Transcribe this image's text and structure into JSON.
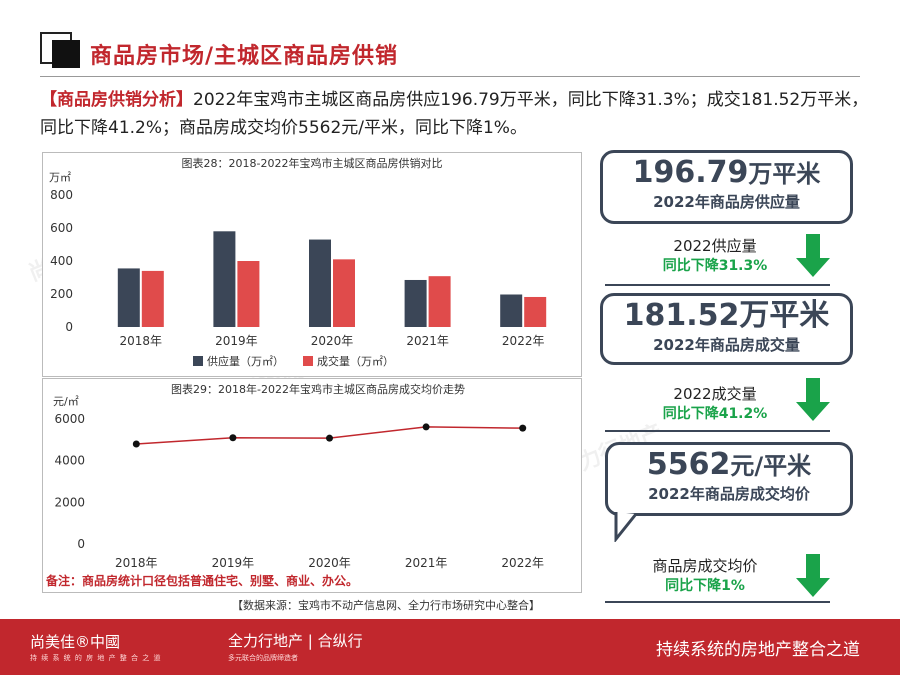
{
  "header": {
    "title": "商品房市场/主城区商品房供销"
  },
  "summary": {
    "tag": "【商品房供销分析】",
    "text": "2022年宝鸡市主城区商品房供应196.79万平米，同比下降31.3%；成交181.52万平米，同比下降41.2%；商品房成交均价5562元/平米，同比下降1%。"
  },
  "chart_data": [
    {
      "type": "bar",
      "title": "图表28：2018-2022年宝鸡市主城区商品房供销对比",
      "ylabel": "万㎡",
      "categories": [
        "2018年",
        "2019年",
        "2020年",
        "2021年",
        "2022年"
      ],
      "ylim": [
        0,
        800
      ],
      "yticks": [
        0,
        200,
        400,
        600,
        800
      ],
      "series": [
        {
          "name": "供应量（万㎡）",
          "color": "#3b4657",
          "values": [
            355,
            580,
            530,
            285,
            197
          ]
        },
        {
          "name": "成交量（万㎡）",
          "color": "#e04b4b",
          "values": [
            340,
            400,
            410,
            308,
            182
          ]
        }
      ],
      "legend": "bottom",
      "grid": false
    },
    {
      "type": "line",
      "title": "图表29：2018年-2022年宝鸡市主城区商品房成交均价走势",
      "ylabel": "元/㎡",
      "categories": [
        "2018年",
        "2019年",
        "2020年",
        "2021年",
        "2022年"
      ],
      "ylim": [
        0,
        6000
      ],
      "yticks": [
        0,
        2000,
        4000,
        6000
      ],
      "series": [
        {
          "color": "#c1272d",
          "values": [
            4800,
            5100,
            5080,
            5620,
            5562
          ]
        }
      ],
      "grid": false
    }
  ],
  "note": "备注：商品房统计口径包括普通住宅、别墅、商业、办公。",
  "source": "【数据来源：宝鸡市不动产信息网、全力行市场研究中心整合】",
  "cards": [
    {
      "value": "196.79",
      "unit": "万平米",
      "label": "2022年商品房供应量"
    },
    {
      "value": "181.52万平米",
      "unit": "",
      "label": "2022年商品房成交量"
    },
    {
      "value": "5562",
      "unit": "元/平米",
      "label": "2022年商品房成交均价"
    }
  ],
  "yoy": [
    {
      "title": "2022供应量",
      "change": "同比下降31.3%"
    },
    {
      "title": "2022成交量",
      "change": "同比下降41.2%"
    },
    {
      "title": "商品房成交均价",
      "change": "同比下降1%"
    }
  ],
  "colors": {
    "accent": "#c1272d",
    "dark": "#3b4657",
    "green": "#1aa34a"
  },
  "footer": {
    "brand1": "尚美佳®中國",
    "brand1_sub": "持 续 系 统 的 房 地 产 整 合 之 道",
    "brand2": "全力行地产 | 合纵行",
    "brand2_sub": "多元联合的品牌缔造者",
    "slogan": "持续系统的房地产整合之道"
  }
}
